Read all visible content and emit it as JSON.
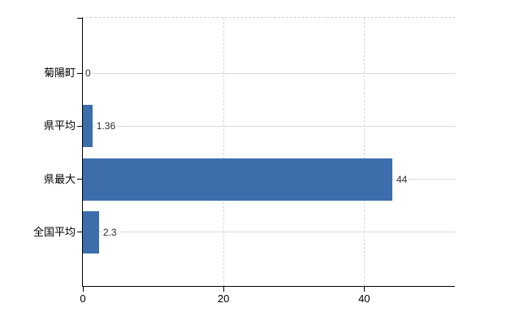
{
  "chart_data": {
    "type": "bar",
    "orientation": "horizontal",
    "title": "",
    "categories": [
      "菊陽町",
      "県平均",
      "県最大",
      "全国平均"
    ],
    "values": [
      0,
      1.36,
      44,
      2.3
    ],
    "value_labels": [
      "0",
      "1.36",
      "44",
      "2.3"
    ],
    "x_ticks": [
      0,
      20,
      40
    ],
    "x_tick_labels": [
      "0",
      "20",
      "40"
    ],
    "xlim": [
      0,
      52.9
    ],
    "grid": true,
    "legend": false,
    "colors": {
      "bar": "#3d6eab",
      "axis": "#000000",
      "h_gridline": "#d6ded4",
      "v_gridline": "#d6d6d6",
      "plot_top_border": "#cfcfcf",
      "label_text": "#000000",
      "value_text": "#2b2b2b",
      "background": "#ffffff"
    }
  }
}
